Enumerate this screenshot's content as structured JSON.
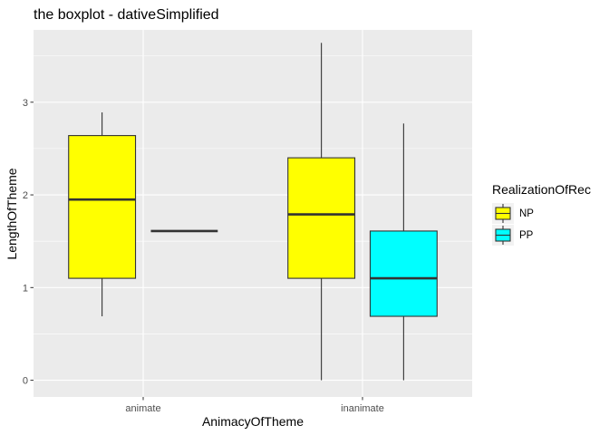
{
  "chart_data": {
    "type": "boxplot",
    "title": "the boxplot - dativeSimplified",
    "xlabel": "AnimacyOfTheme",
    "ylabel": "LengthOfTheme",
    "categories": [
      "animate",
      "inanimate"
    ],
    "yticks": [
      "0",
      "1",
      "2",
      "3"
    ],
    "ylim": [
      -0.18,
      3.78
    ],
    "grid": true,
    "panel_background": "#ebebeb",
    "legend": {
      "title": "RealizationOfRec",
      "position": "right",
      "entries": [
        {
          "name": "NP",
          "color": "#ffff00"
        },
        {
          "name": "PP",
          "color": "#00ffff"
        }
      ]
    },
    "series": [
      {
        "name": "NP",
        "color": "#ffff00",
        "boxes": [
          {
            "category": "animate",
            "lower_whisker": 0.69,
            "q1": 1.1,
            "median": 1.95,
            "q3": 2.64,
            "upper_whisker": 2.89
          },
          {
            "category": "inanimate",
            "lower_whisker": 0.0,
            "q1": 1.1,
            "median": 1.79,
            "q3": 2.4,
            "upper_whisker": 3.64
          }
        ]
      },
      {
        "name": "PP",
        "color": "#00ffff",
        "boxes": [
          {
            "category": "animate",
            "lower_whisker": 1.61,
            "q1": 1.61,
            "median": 1.61,
            "q3": 1.61,
            "upper_whisker": 1.61
          },
          {
            "category": "inanimate",
            "lower_whisker": 0.0,
            "q1": 0.69,
            "median": 1.1,
            "q3": 1.61,
            "upper_whisker": 2.77
          }
        ]
      }
    ]
  }
}
